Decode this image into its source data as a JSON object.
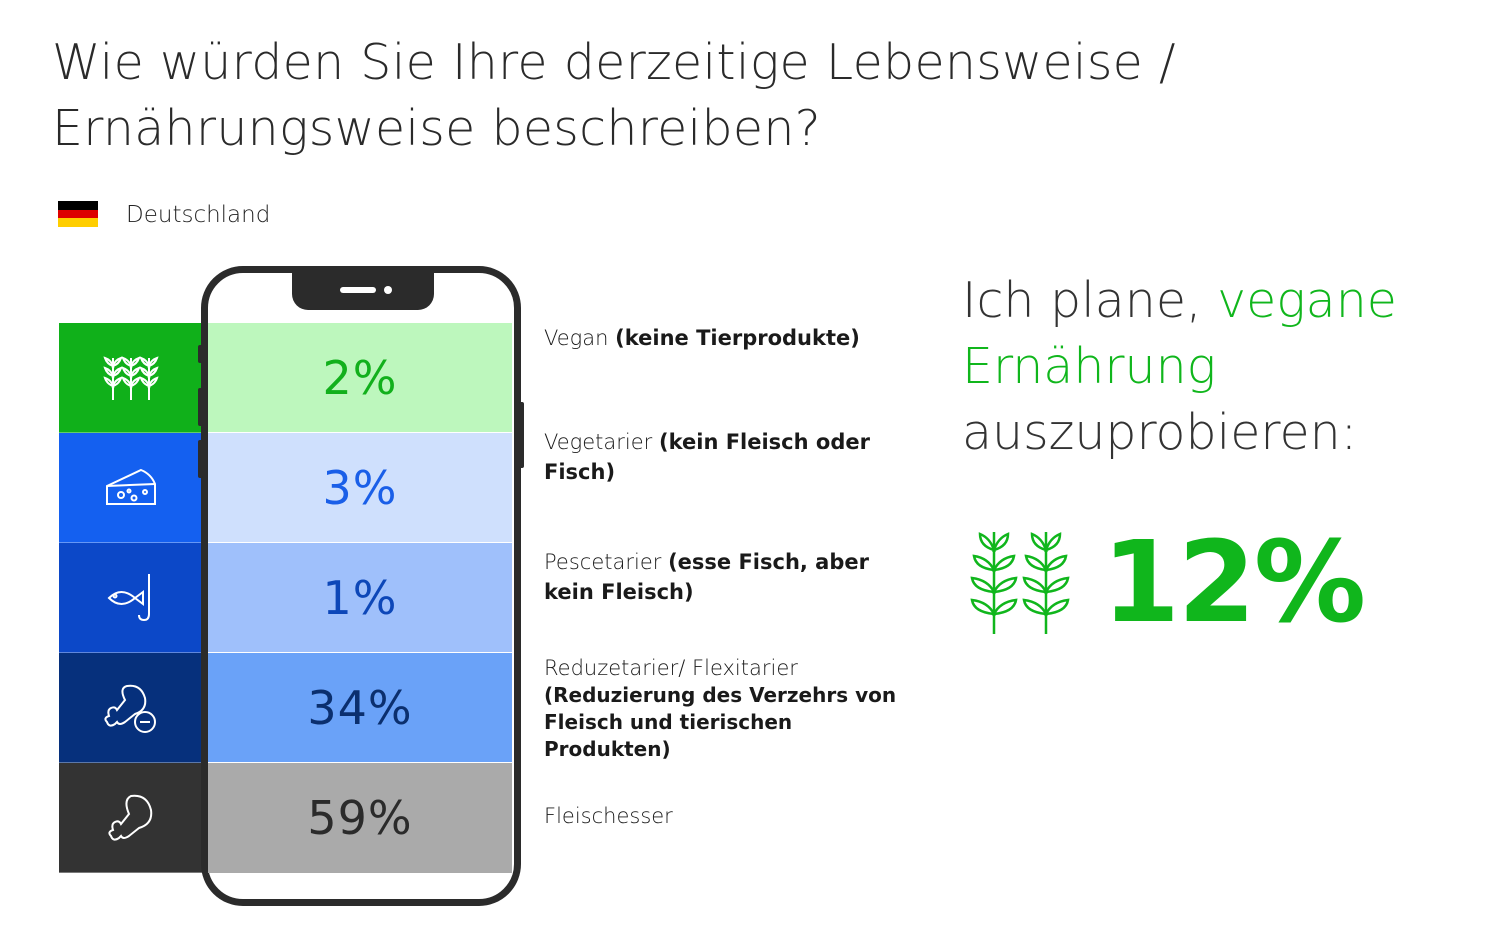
{
  "title": "Wie würden Sie Ihre derzeitige Lebensweise / Ernährungsweise beschreiben?",
  "country": {
    "label": "Deutschland",
    "flag_colors": [
      "#000000",
      "#dd0000",
      "#ffce00"
    ]
  },
  "chart_data": {
    "type": "table",
    "unit": "%",
    "categories": [
      {
        "name": "Vegan",
        "detail": "(keine Tierprodukte)",
        "value": 2,
        "display": "2%",
        "icon": "wheat-icon",
        "icon_bg": "#10b01a",
        "bar_bg": "#bdf7bd",
        "text_color": "#12b01c"
      },
      {
        "name": "Vegetarier",
        "detail": "(kein Fleisch oder Fisch)",
        "value": 3,
        "display": "3%",
        "icon": "cheese-icon",
        "icon_bg": "#1460f0",
        "bar_bg": "#cfe0fd",
        "text_color": "#1a5fe8"
      },
      {
        "name": "Pescetarier",
        "detail": "(esse Fisch, aber kein Fleisch)",
        "value": 1,
        "display": "1%",
        "icon": "fish-hook-icon",
        "icon_bg": "#0c48c8",
        "bar_bg": "#9fc0fb",
        "text_color": "#0d47b8"
      },
      {
        "name": "Reduzetarier/ Flexitarier",
        "detail": "(Reduzierung des Verzehrs von Fleisch und tierischen Produkten)",
        "value": 34,
        "display": "34%",
        "icon": "drumstick-minus-icon",
        "icon_bg": "#06307c",
        "bar_bg": "#6aa2f8",
        "text_color": "#0b2f6e"
      },
      {
        "name": "Fleischesser",
        "detail": "",
        "value": 59,
        "display": "59%",
        "icon": "drumstick-icon",
        "icon_bg": "#333333",
        "bar_bg": "#aaaaaa",
        "text_color": "#2b2b2b"
      }
    ]
  },
  "plan": {
    "part1": "Ich plane, ",
    "part2": "vegane Ernährung",
    "part3": " auszuprobieren:",
    "value": 12,
    "display": "12%",
    "icon": "double-wheat-icon",
    "accent": "#10b61c"
  }
}
